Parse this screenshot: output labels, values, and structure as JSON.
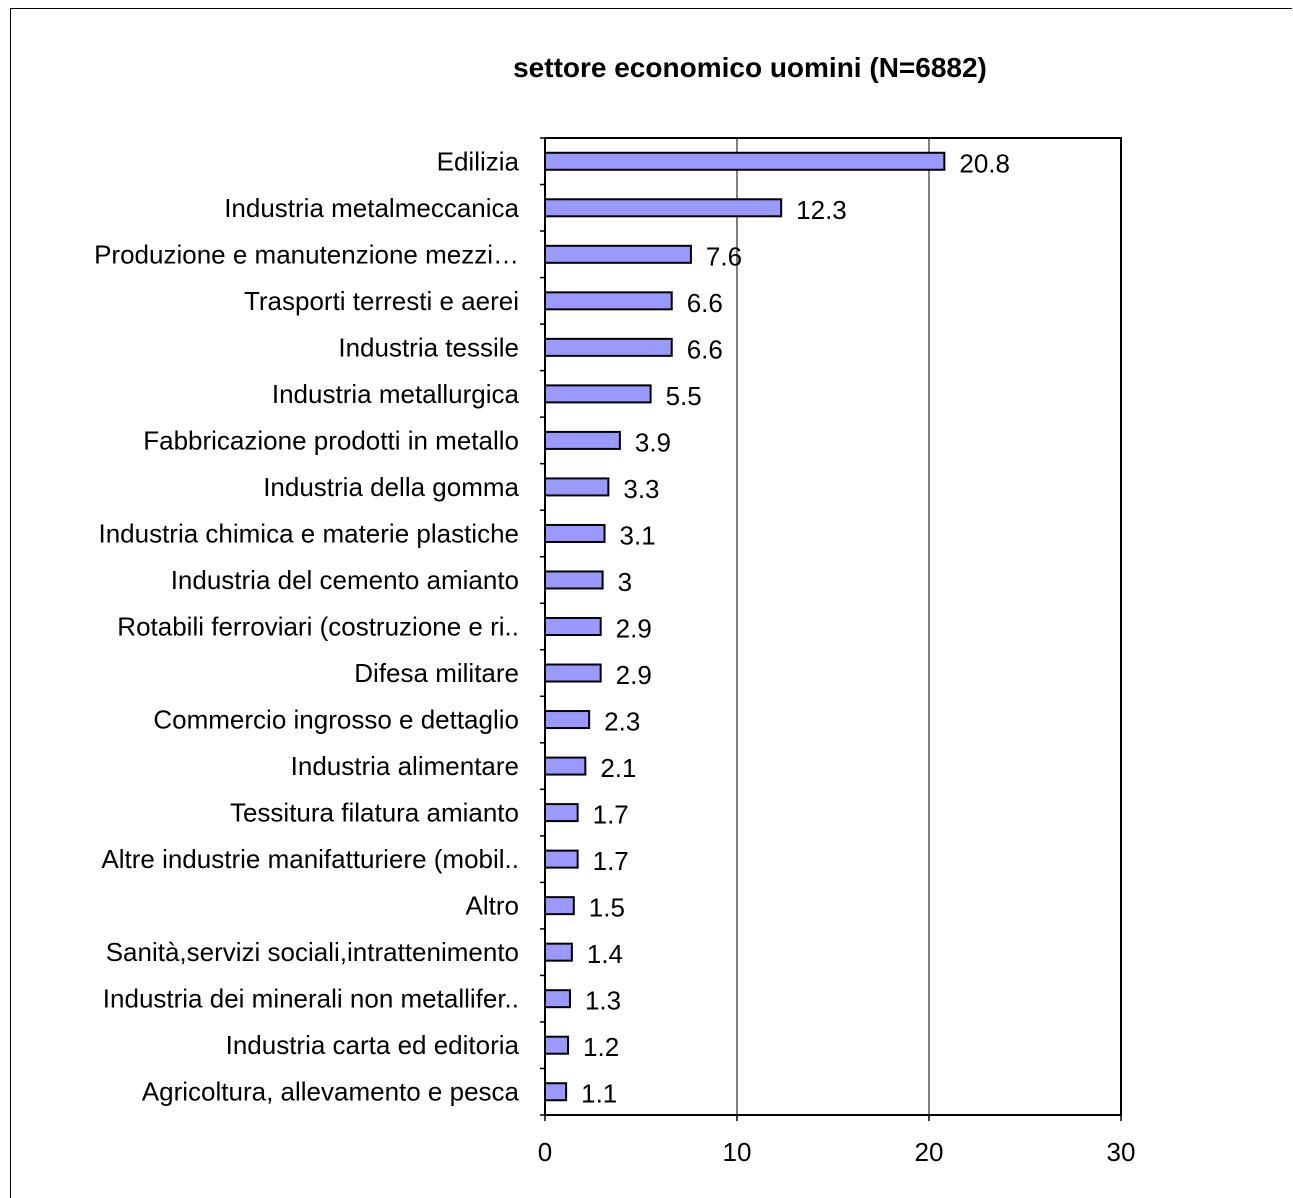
{
  "chart_data": {
    "type": "bar",
    "orientation": "horizontal",
    "title": "settore economico uomini (N=6882)",
    "xlabel": "",
    "ylabel": "",
    "xlim": [
      0,
      30
    ],
    "x_ticks": [
      "0",
      "10",
      "20",
      "30"
    ],
    "grid": "vertical major gridlines",
    "bar_color": "#9999ff",
    "categories": [
      "Edilizia",
      "Industria metalmeccanica",
      "Produzione e manutenzione mezzi…",
      "Trasporti terresti e aerei",
      "Industria tessile",
      "Industria metallurgica",
      "Fabbricazione prodotti in metallo",
      "Industria della gomma",
      "Industria chimica e materie plastiche",
      "Industria del cemento amianto",
      "Rotabili ferroviari (costruzione e ri..",
      "Difesa militare",
      "Commercio ingrosso e dettaglio",
      "Industria alimentare",
      "Tessitura filatura amianto",
      "Altre industrie manifatturiere (mobil..",
      "Altro",
      "Sanità,servizi sociali,intrattenimento",
      "Industria dei minerali non metallifer..",
      "Industria carta ed editoria",
      "Agricoltura, allevamento e pesca"
    ],
    "values": [
      20.8,
      12.3,
      7.6,
      6.6,
      6.6,
      5.5,
      3.9,
      3.3,
      3.1,
      3,
      2.9,
      2.9,
      2.3,
      2.1,
      1.7,
      1.7,
      1.5,
      1.4,
      1.3,
      1.2,
      1.1
    ],
    "value_labels": [
      "20.8",
      "12.3",
      "7.6",
      "6.6",
      "6.6",
      "5.5",
      "3.9",
      "3.3",
      "3.1",
      "3",
      "2.9",
      "2.9",
      "2.3",
      "2.1",
      "1.7",
      "1.7",
      "1.5",
      "1.4",
      "1.3",
      "1.2",
      "1.1"
    ]
  }
}
